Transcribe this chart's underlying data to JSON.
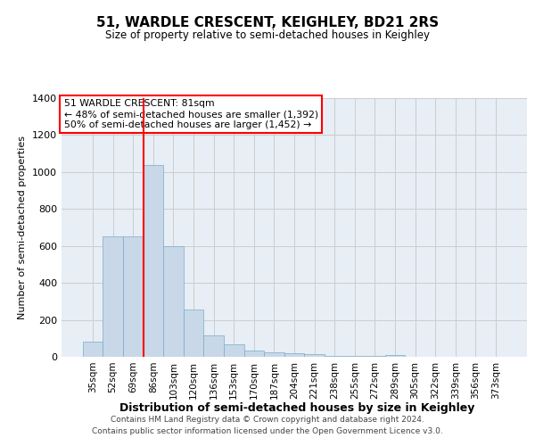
{
  "title": "51, WARDLE CRESCENT, KEIGHLEY, BD21 2RS",
  "subtitle": "Size of property relative to semi-detached houses in Keighley",
  "xlabel": "Distribution of semi-detached houses by size in Keighley",
  "ylabel": "Number of semi-detached properties",
  "categories": [
    "35sqm",
    "52sqm",
    "69sqm",
    "86sqm",
    "103sqm",
    "120sqm",
    "136sqm",
    "153sqm",
    "170sqm",
    "187sqm",
    "204sqm",
    "221sqm",
    "238sqm",
    "255sqm",
    "272sqm",
    "289sqm",
    "305sqm",
    "322sqm",
    "339sqm",
    "356sqm",
    "373sqm"
  ],
  "values": [
    80,
    650,
    650,
    1040,
    600,
    255,
    115,
    70,
    35,
    25,
    20,
    15,
    5,
    3,
    3,
    12,
    0,
    0,
    0,
    0,
    0
  ],
  "bar_color": "#c8d8e8",
  "bar_edge_color": "#7aaac8",
  "grid_color": "#cccccc",
  "ax_bg_color": "#e8eef5",
  "background_color": "#ffffff",
  "red_line_bin": 3,
  "annotation_title": "51 WARDLE CRESCENT: 81sqm",
  "annotation_line1": "← 48% of semi-detached houses are smaller (1,392)",
  "annotation_line2": "50% of semi-detached houses are larger (1,452) →",
  "footer_line1": "Contains HM Land Registry data © Crown copyright and database right 2024.",
  "footer_line2": "Contains public sector information licensed under the Open Government Licence v3.0.",
  "ylim": [
    0,
    1400
  ],
  "yticks": [
    0,
    200,
    400,
    600,
    800,
    1000,
    1200,
    1400
  ]
}
